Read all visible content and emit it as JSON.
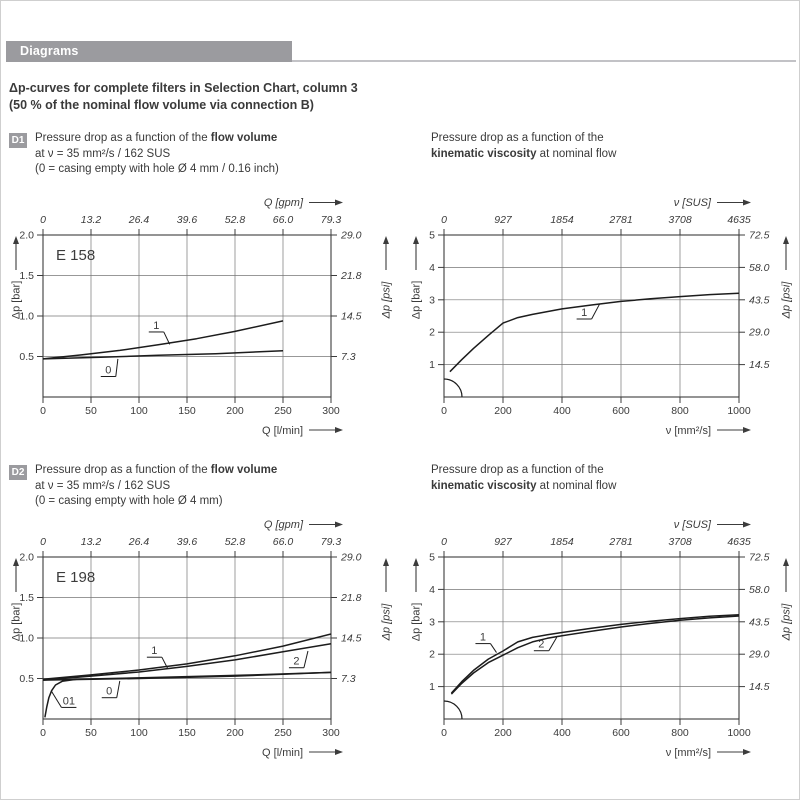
{
  "page": {
    "section_header": "Diagrams",
    "title_line1": "Δp-curves for complete filters in Selection Chart, column 3",
    "title_line2": "(50 % of the nominal flow volume via connection B)"
  },
  "blocks": [
    {
      "badge": "D1",
      "left": {
        "l1a": "Pressure drop as a function of the ",
        "l1b": "flow volume",
        "l2": "at ν = 35 mm²/s / 162 SUS",
        "l3": "(0 = casing empty with hole Ø 4 mm / 0.16 inch)"
      },
      "right": {
        "l1": "Pressure drop as a function of the",
        "l2b": "kinematic viscosity",
        "l2c": " at nominal flow"
      }
    },
    {
      "badge": "D2",
      "left": {
        "l1a": "Pressure drop as a function of the ",
        "l1b": "flow volume",
        "l2": "at ν = 35 mm²/s / 162 SUS",
        "l3": "(0 = casing empty with hole Ø 4 mm)"
      },
      "right": {
        "l1": "Pressure drop as a function of the",
        "l2b": "kinematic viscosity",
        "l2c": " at nominal flow"
      }
    }
  ],
  "chart_data": [
    {
      "id": "d1-flow-e158",
      "type": "line",
      "annotation": "E 158",
      "x_top": {
        "label": "Q [gpm]",
        "ticks": [
          "0",
          "13.2",
          "26.4",
          "39.6",
          "52.8",
          "66.0",
          "79.3"
        ]
      },
      "x_bottom": {
        "label": "Q [l/min]",
        "ticks": [
          "0",
          "50",
          "100",
          "150",
          "200",
          "250",
          "300"
        ]
      },
      "y_left": {
        "label": "Δp [bar]",
        "ticks": [
          "2.0",
          "1.5",
          "1.0",
          "0.5"
        ]
      },
      "y_right": {
        "label": "Δp [psi]",
        "ticks": [
          "29.0",
          "21.8",
          "14.5",
          "7.3"
        ]
      },
      "xlim": [
        0,
        300
      ],
      "ylim": [
        0,
        2
      ],
      "grid": true,
      "origin_arc": false,
      "series": [
        {
          "name": "1",
          "points": [
            [
              0,
              0.47
            ],
            [
              40,
              0.52
            ],
            [
              80,
              0.575
            ],
            [
              120,
              0.645
            ],
            [
              160,
              0.72
            ],
            [
              200,
              0.81
            ],
            [
              250,
              0.94
            ]
          ],
          "label": {
            "x": 118,
            "y": 0.84,
            "leader": [
              132,
              0.65
            ],
            "attach": "right"
          }
        },
        {
          "name": "0",
          "points": [
            [
              0,
              0.47
            ],
            [
              60,
              0.49
            ],
            [
              120,
              0.515
            ],
            [
              180,
              0.535
            ],
            [
              250,
              0.57
            ]
          ],
          "label": {
            "x": 68,
            "y": 0.29,
            "leader": [
              78,
              0.47
            ],
            "attach": "right"
          }
        }
      ]
    },
    {
      "id": "d1-viscosity",
      "type": "line",
      "annotation": "",
      "x_top": {
        "label": "ν  [SUS]",
        "ticks": [
          "0",
          "927",
          "1854",
          "2781",
          "3708",
          "4635"
        ]
      },
      "x_bottom": {
        "label": "ν  [mm²/s]",
        "ticks": [
          "0",
          "200",
          "400",
          "600",
          "800",
          "1000"
        ]
      },
      "y_left": {
        "label": "Δp [bar]",
        "ticks": [
          "5",
          "4",
          "3",
          "2",
          "1"
        ]
      },
      "y_right": {
        "label": "Δp [psi]",
        "ticks": [
          "72.5",
          "58.0",
          "43.5",
          "29.0",
          "14.5"
        ]
      },
      "xlim": [
        0,
        1000
      ],
      "ylim": [
        0,
        5
      ],
      "grid": true,
      "origin_arc": true,
      "series": [
        {
          "name": "1",
          "points": [
            [
              20,
              0.78
            ],
            [
              60,
              1.15
            ],
            [
              100,
              1.5
            ],
            [
              150,
              1.9
            ],
            [
              200,
              2.28
            ],
            [
              250,
              2.45
            ],
            [
              300,
              2.55
            ],
            [
              400,
              2.72
            ],
            [
              500,
              2.84
            ],
            [
              600,
              2.95
            ],
            [
              700,
              3.03
            ],
            [
              800,
              3.1
            ],
            [
              900,
              3.16
            ],
            [
              1000,
              3.2
            ]
          ],
          "label": {
            "x": 475,
            "y": 2.5,
            "leader": [
              528,
              2.88
            ],
            "attach": "right"
          }
        }
      ]
    },
    {
      "id": "d2-flow-e198",
      "type": "line",
      "annotation": "E 198",
      "x_top": {
        "label": "Q [gpm]",
        "ticks": [
          "0",
          "13.2",
          "26.4",
          "39.6",
          "52.8",
          "66.0",
          "79.3"
        ]
      },
      "x_bottom": {
        "label": "Q [l/min]",
        "ticks": [
          "0",
          "50",
          "100",
          "150",
          "200",
          "250",
          "300"
        ]
      },
      "y_left": {
        "label": "Δp [bar]",
        "ticks": [
          "2.0",
          "1.5",
          "1.0",
          "0.5"
        ]
      },
      "y_right": {
        "label": "Δp [psi]",
        "ticks": [
          "29.0",
          "21.8",
          "14.5",
          "7.3"
        ]
      },
      "xlim": [
        0,
        300
      ],
      "ylim": [
        0,
        2
      ],
      "grid": true,
      "origin_arc": false,
      "series": [
        {
          "name": "1",
          "points": [
            [
              0,
              0.49
            ],
            [
              50,
              0.545
            ],
            [
              100,
              0.605
            ],
            [
              150,
              0.68
            ],
            [
              200,
              0.78
            ],
            [
              250,
              0.9
            ],
            [
              300,
              1.05
            ]
          ],
          "label": {
            "x": 116,
            "y": 0.8,
            "leader": [
              130,
              0.62
            ],
            "attach": "right"
          }
        },
        {
          "name": "2",
          "points": [
            [
              0,
              0.48
            ],
            [
              50,
              0.53
            ],
            [
              100,
              0.58
            ],
            [
              150,
              0.65
            ],
            [
              200,
              0.73
            ],
            [
              250,
              0.83
            ],
            [
              300,
              0.93
            ]
          ],
          "label": {
            "x": 264,
            "y": 0.67,
            "leader": [
              276,
              0.84
            ],
            "attach": "right"
          }
        },
        {
          "name": "0",
          "points": [
            [
              0,
              0.48
            ],
            [
              100,
              0.5
            ],
            [
              200,
              0.53
            ],
            [
              300,
              0.575
            ]
          ],
          "label": {
            "x": 69,
            "y": 0.3,
            "leader": [
              80,
              0.47
            ],
            "attach": "right"
          }
        },
        {
          "name": "01",
          "points": [
            [
              2,
              0.02
            ],
            [
              4,
              0.15
            ],
            [
              6,
              0.26
            ],
            [
              9,
              0.35
            ],
            [
              13,
              0.42
            ],
            [
              20,
              0.465
            ],
            [
              35,
              0.49
            ],
            [
              70,
              0.5
            ],
            [
              140,
              0.52
            ],
            [
              220,
              0.545
            ],
            [
              300,
              0.575
            ]
          ],
          "label": {
            "x": 27,
            "y": 0.18,
            "leader": [
              9,
              0.34
            ],
            "attach": "left"
          }
        }
      ]
    },
    {
      "id": "d2-viscosity",
      "type": "line",
      "annotation": "",
      "x_top": {
        "label": "ν  [SUS]",
        "ticks": [
          "0",
          "927",
          "1854",
          "2781",
          "3708",
          "4635"
        ]
      },
      "x_bottom": {
        "label": "ν  [mm²/s]",
        "ticks": [
          "0",
          "200",
          "400",
          "600",
          "800",
          "1000"
        ]
      },
      "y_left": {
        "label": "Δp [bar]",
        "ticks": [
          "5",
          "4",
          "3",
          "2",
          "1"
        ]
      },
      "y_right": {
        "label": "Δp [psi]",
        "ticks": [
          "72.5",
          "58.0",
          "43.5",
          "29.0",
          "14.5"
        ]
      },
      "xlim": [
        0,
        1000
      ],
      "ylim": [
        0,
        5
      ],
      "grid": true,
      "origin_arc": true,
      "series": [
        {
          "name": "1",
          "points": [
            [
              25,
              0.8
            ],
            [
              60,
              1.15
            ],
            [
              100,
              1.5
            ],
            [
              150,
              1.85
            ],
            [
              200,
              2.1
            ],
            [
              250,
              2.38
            ],
            [
              300,
              2.52
            ],
            [
              350,
              2.6
            ],
            [
              400,
              2.67
            ],
            [
              500,
              2.8
            ],
            [
              600,
              2.92
            ],
            [
              700,
              3.02
            ],
            [
              800,
              3.1
            ],
            [
              900,
              3.17
            ],
            [
              1000,
              3.22
            ]
          ],
          "label": {
            "x": 132,
            "y": 2.42,
            "leader": [
              178,
              2.05
            ],
            "attach": "right"
          }
        },
        {
          "name": "2",
          "points": [
            [
              25,
              0.77
            ],
            [
              60,
              1.1
            ],
            [
              100,
              1.42
            ],
            [
              150,
              1.74
            ],
            [
              200,
              1.97
            ],
            [
              250,
              2.2
            ],
            [
              300,
              2.38
            ],
            [
              350,
              2.49
            ],
            [
              400,
              2.57
            ],
            [
              500,
              2.71
            ],
            [
              600,
              2.84
            ],
            [
              700,
              2.95
            ],
            [
              800,
              3.05
            ],
            [
              900,
              3.12
            ],
            [
              1000,
              3.18
            ]
          ],
          "label": {
            "x": 330,
            "y": 2.2,
            "leader": [
              382,
              2.52
            ],
            "attach": "right"
          }
        }
      ]
    }
  ]
}
